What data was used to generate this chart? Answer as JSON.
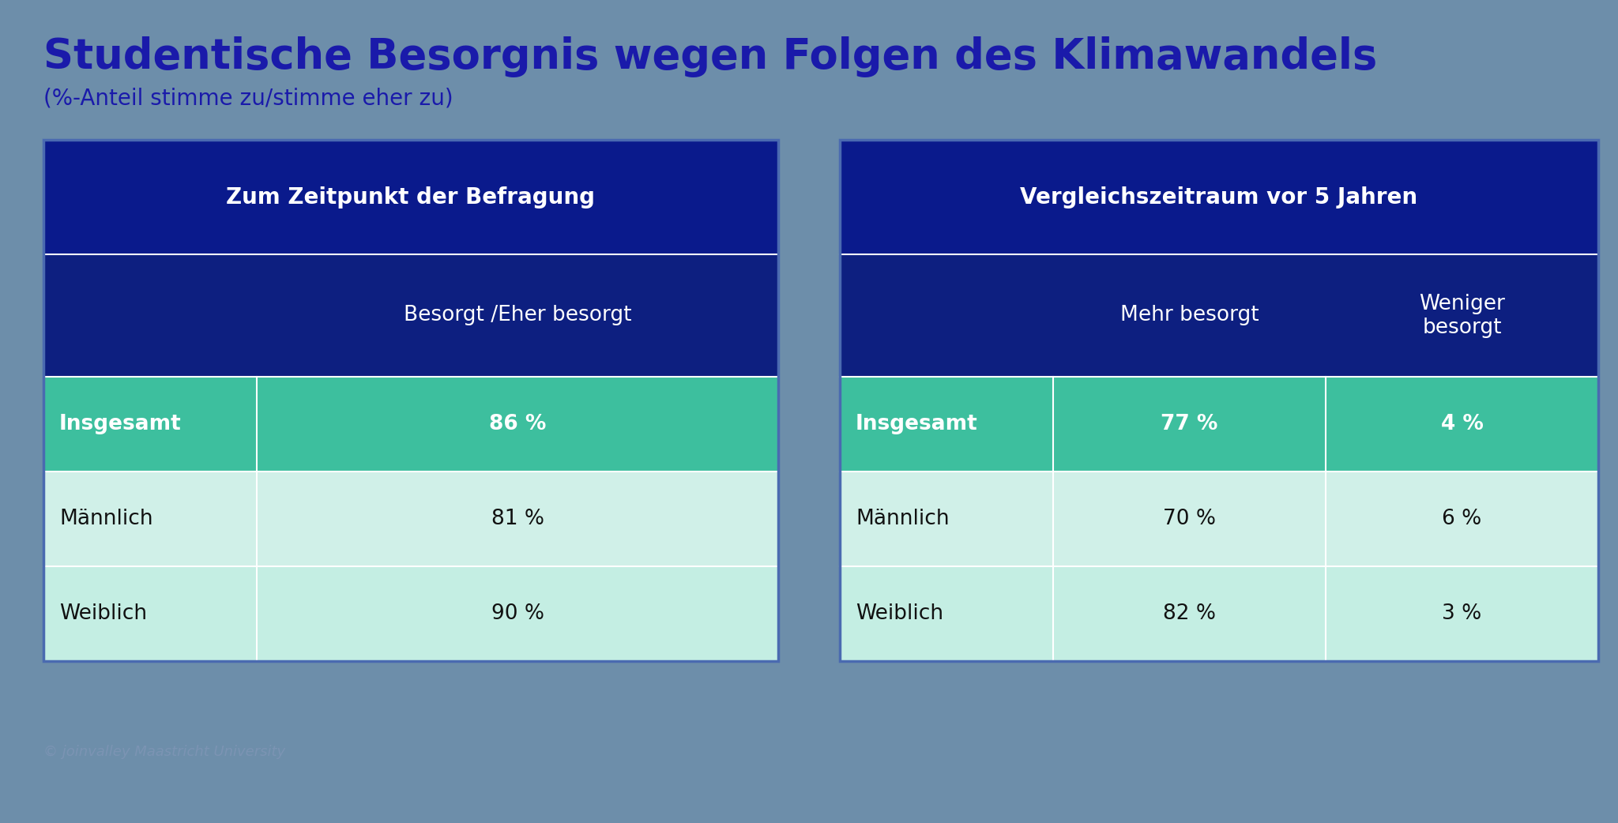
{
  "title": "Studentische Besorgnis wegen Folgen des Klimawandels",
  "subtitle": "(%-Anteil stimme zu/stimme eher zu)",
  "watermark": "© joinvalley Maastricht University",
  "bg_color": "#6d8eaa",
  "dark_blue": "#0a1a8c",
  "col_hdr_blue": "#0d1f80",
  "teal_strong": "#3dbf9e",
  "teal_light": "#d0f0e8",
  "teal_light2": "#c4eee3",
  "white": "#ffffff",
  "row_text_dark": "#111111",
  "title_color": "#1a1aaa",
  "subtitle_color": "#1a1aaa",
  "left_table": {
    "header": "Zum Zeitpunkt der Befragung",
    "col_header": "Besorgt /Eher besorgt",
    "rows": [
      {
        "label": "Insgesamt",
        "value": "86 %",
        "highlight": true
      },
      {
        "label": "Männlich",
        "value": "81 %",
        "highlight": false
      },
      {
        "label": "Weiblich",
        "value": "90 %",
        "highlight": false
      }
    ]
  },
  "right_table": {
    "header": "Vergleichszeitraum vor 5 Jahren",
    "col_headers": [
      "Mehr besorgt",
      "Weniger\nbesorgt"
    ],
    "rows": [
      {
        "label": "Insgesamt",
        "val1": "77 %",
        "val2": "4 %",
        "highlight": true
      },
      {
        "label": "Männlich",
        "val1": "70 %",
        "val2": "6 %",
        "highlight": false
      },
      {
        "label": "Weiblich",
        "val1": "82 %",
        "val2": "3 %",
        "highlight": false
      }
    ]
  },
  "fig_width": 20.48,
  "fig_height": 10.42,
  "dpi": 100
}
